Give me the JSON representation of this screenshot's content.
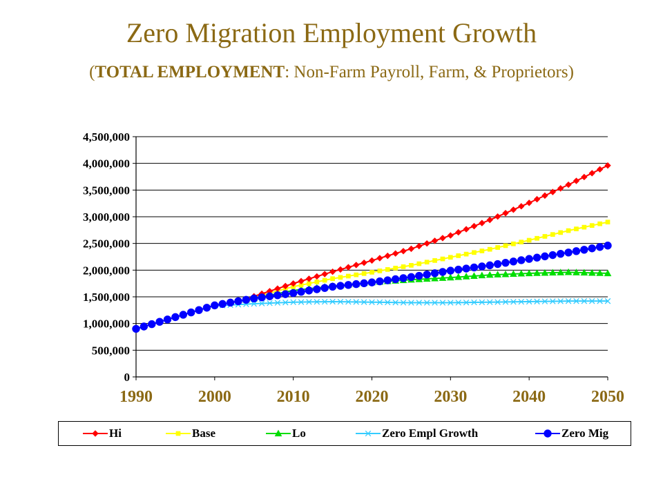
{
  "title": "Zero Migration Employment Growth",
  "subtitle": {
    "open": "(",
    "bold": "TOTAL EMPLOYMENT",
    "rest": ": Non-Farm Payroll, Farm, & Proprietors)"
  },
  "chart_data": {
    "type": "line",
    "xlim": [
      1990,
      2050
    ],
    "ylim": [
      0,
      4500000
    ],
    "x_ticks": [
      "1990",
      "2000",
      "2010",
      "2020",
      "2030",
      "2040",
      "2050"
    ],
    "y_ticks": [
      "0",
      "500,000",
      "1,000,000",
      "1,500,000",
      "2,000,000",
      "2,500,000",
      "3,000,000",
      "3,500,000",
      "4,000,000",
      "4,500,000"
    ],
    "grid": "horizontal",
    "legend_position": "bottom",
    "x": [
      1990,
      2000,
      2005,
      2010,
      2015,
      2020,
      2025,
      2030,
      2035,
      2040,
      2045,
      2050
    ],
    "series": [
      {
        "name": "Hi",
        "color": "#ff0000",
        "marker": "diamond",
        "start_year": 2004,
        "values": [
          null,
          null,
          1510000,
          1750000,
          1970000,
          2180000,
          2400000,
          2650000,
          2940000,
          3260000,
          3600000,
          3960000
        ]
      },
      {
        "name": "Base",
        "color": "#ffff00",
        "marker": "square",
        "start_year": 2004,
        "values": [
          null,
          null,
          1490000,
          1690000,
          1840000,
          1960000,
          2090000,
          2240000,
          2390000,
          2560000,
          2740000,
          2900000
        ]
      },
      {
        "name": "Lo",
        "color": "#00dd00",
        "marker": "triangle",
        "start_year": 2004,
        "values": [
          null,
          null,
          1470000,
          1620000,
          1700000,
          1770000,
          1820000,
          1860000,
          1910000,
          1940000,
          1960000,
          1940000
        ]
      },
      {
        "name": "Zero Empl Growth",
        "color": "#33ccff",
        "marker": "x",
        "start_year": 1999,
        "values": [
          null,
          1330000,
          1370000,
          1400000,
          1410000,
          1400000,
          1390000,
          1390000,
          1400000,
          1410000,
          1420000,
          1420000
        ]
      },
      {
        "name": "Zero Mig",
        "color": "#0000ff",
        "marker": "circle",
        "start_year": 1990,
        "values": [
          900000,
          1340000,
          1470000,
          1570000,
          1690000,
          1770000,
          1870000,
          1990000,
          2090000,
          2210000,
          2330000,
          2460000
        ]
      }
    ]
  }
}
